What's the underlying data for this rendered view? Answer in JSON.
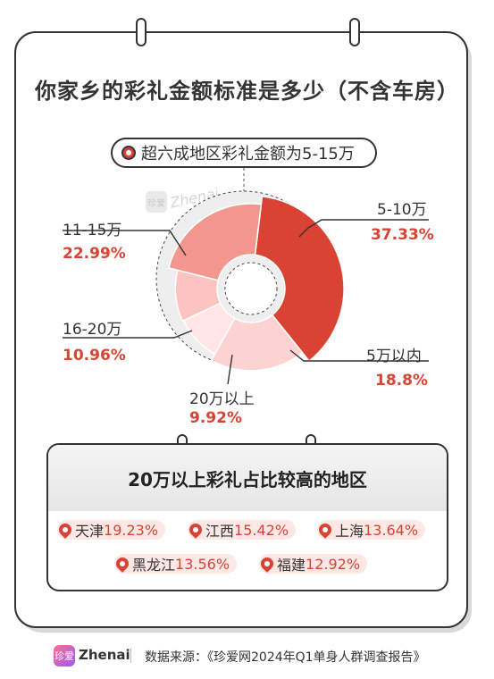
{
  "title": "你家乡的彩礼金额标准是多少（不含车房）",
  "callout": "超六成地区彩礼金额为5-15万",
  "watermark": {
    "logo": "珍爱",
    "text": "Zhenai"
  },
  "chart_data": {
    "type": "pie",
    "variant": "donut",
    "title": "你家乡的彩礼金额标准是多少（不含车房）",
    "categories": [
      "5-10万",
      "5万以内",
      "20万以上",
      "16-20万",
      "11-15万"
    ],
    "values": [
      37.33,
      18.8,
      9.92,
      10.96,
      22.99
    ],
    "value_labels": [
      "37.33%",
      "18.8%",
      "9.92%",
      "10.96%",
      "22.99%"
    ],
    "colors": [
      "#d94333",
      "#fdd3d1",
      "#ffe5e3",
      "#fcc4c0",
      "#f2968e"
    ]
  },
  "regions": {
    "heading": "20万以上彩礼占比较高的地区",
    "items": [
      {
        "name": "天津",
        "value": "19.23%"
      },
      {
        "name": "江西",
        "value": "15.42%"
      },
      {
        "name": "上海",
        "value": "13.64%"
      },
      {
        "name": "黑龙江",
        "value": "13.56%"
      },
      {
        "name": "福建",
        "value": "12.92%"
      }
    ]
  },
  "footer": {
    "logo": "珍爱",
    "brand": "Zhenai",
    "source": "数据来源：《珍爱网2024年Q1单身人群调查报告》"
  }
}
